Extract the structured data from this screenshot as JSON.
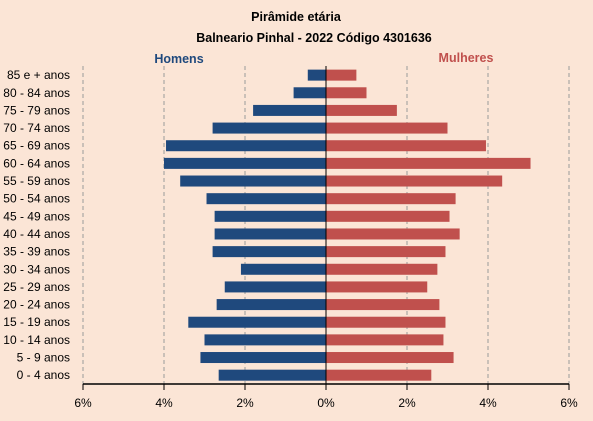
{
  "chart_data": {
    "type": "bar",
    "orientation": "horizontal-diverging",
    "title": "Pirâmide etária",
    "subtitle": "Balneario Pinhal - 2022 Código 4301636",
    "categories": [
      "0 - 4 anos",
      "5 - 9 anos",
      "10 - 14 anos",
      "15 - 19 anos",
      "20 - 24 anos",
      "25 - 29 anos",
      "30 - 34 anos",
      "35 - 39 anos",
      "40 - 44 anos",
      "45 - 49 anos",
      "50 - 54 anos",
      "55 - 59 anos",
      "60 - 64 anos",
      "65 - 69 anos",
      "70 - 74 anos",
      "75 - 79 anos",
      "80 - 84 anos",
      "85 e + anos"
    ],
    "series": [
      {
        "name": "Homens",
        "color": "#1f497d",
        "values": [
          2.65,
          3.1,
          3.0,
          3.4,
          2.7,
          2.5,
          2.1,
          2.8,
          2.75,
          2.75,
          2.95,
          3.6,
          4.0,
          3.95,
          2.8,
          1.8,
          0.8,
          0.45
        ]
      },
      {
        "name": "Mulheres",
        "color": "#c0504d",
        "values": [
          2.6,
          3.15,
          2.9,
          2.95,
          2.8,
          2.5,
          2.75,
          2.95,
          3.3,
          3.05,
          3.2,
          4.35,
          5.05,
          3.95,
          3.0,
          1.75,
          1.0,
          0.75
        ]
      }
    ],
    "xlim": [
      -6,
      6
    ],
    "xticks": [
      "6%",
      "4%",
      "2%",
      "0%",
      "2%",
      "4%",
      "6%"
    ],
    "grid": "vertical dashed",
    "legend": "top, series names above each side"
  }
}
